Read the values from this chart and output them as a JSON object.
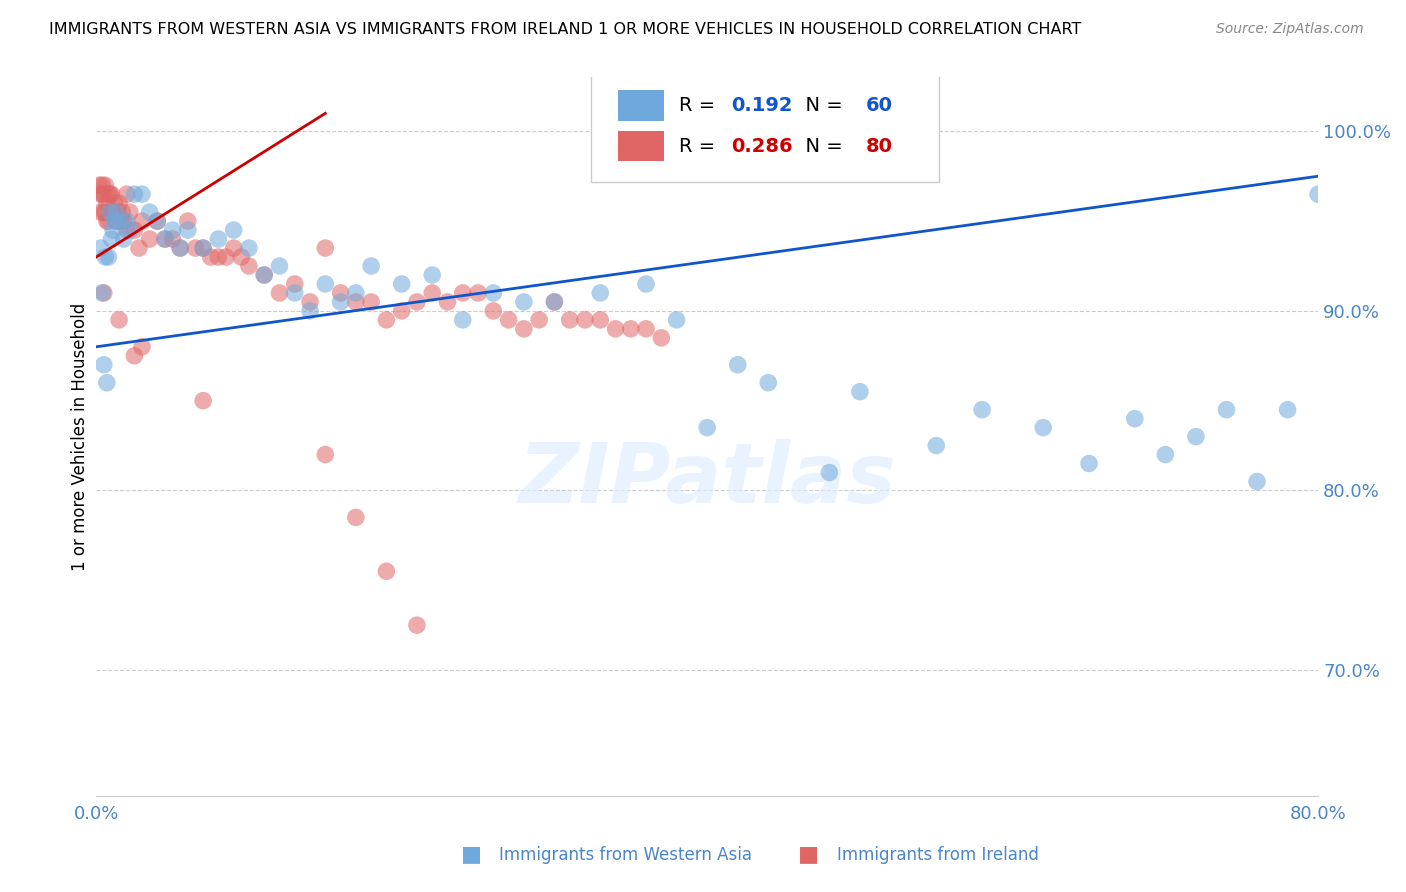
{
  "title": "IMMIGRANTS FROM WESTERN ASIA VS IMMIGRANTS FROM IRELAND 1 OR MORE VEHICLES IN HOUSEHOLD CORRELATION CHART",
  "source": "Source: ZipAtlas.com",
  "ylabel": "1 or more Vehicles in Household",
  "blue_R": 0.192,
  "blue_N": 60,
  "pink_R": 0.286,
  "pink_N": 80,
  "blue_color": "#6fa8dc",
  "pink_color": "#e06666",
  "blue_line_color": "#1155cc",
  "pink_line_color": "#cc0000",
  "axis_color": "#4a86c8",
  "watermark": "ZIPatlas",
  "xlim": [
    0,
    80
  ],
  "ylim": [
    63,
    103
  ],
  "ytick_vals": [
    70.0,
    80.0,
    90.0,
    100.0
  ],
  "blue_scatter_x": [
    0.3,
    0.4,
    0.5,
    0.6,
    0.7,
    0.8,
    0.9,
    1.0,
    1.1,
    1.2,
    1.3,
    1.5,
    1.8,
    2.0,
    2.2,
    2.5,
    3.0,
    3.5,
    4.0,
    4.5,
    5.0,
    5.5,
    6.0,
    7.0,
    8.0,
    9.0,
    10.0,
    11.0,
    12.0,
    13.0,
    14.0,
    15.0,
    16.0,
    17.0,
    18.0,
    20.0,
    22.0,
    24.0,
    26.0,
    28.0,
    30.0,
    33.0,
    36.0,
    38.0,
    40.0,
    42.0,
    44.0,
    48.0,
    50.0,
    55.0,
    58.0,
    62.0,
    65.0,
    68.0,
    70.0,
    72.0,
    74.0,
    76.0,
    78.0,
    80.0
  ],
  "blue_scatter_y": [
    93.5,
    91.0,
    87.0,
    93.0,
    86.0,
    93.0,
    95.5,
    94.0,
    94.5,
    95.0,
    95.5,
    95.0,
    94.0,
    95.0,
    94.5,
    96.5,
    96.5,
    95.5,
    95.0,
    94.0,
    94.5,
    93.5,
    94.5,
    93.5,
    94.0,
    94.5,
    93.5,
    92.0,
    92.5,
    91.0,
    90.0,
    91.5,
    90.5,
    91.0,
    92.5,
    91.5,
    92.0,
    89.5,
    91.0,
    90.5,
    90.5,
    91.0,
    91.5,
    89.5,
    83.5,
    87.0,
    86.0,
    81.0,
    85.5,
    82.5,
    84.5,
    83.5,
    81.5,
    84.0,
    82.0,
    83.0,
    84.5,
    80.5,
    84.5,
    96.5
  ],
  "pink_scatter_x": [
    0.2,
    0.3,
    0.3,
    0.4,
    0.4,
    0.5,
    0.5,
    0.6,
    0.6,
    0.7,
    0.7,
    0.8,
    0.8,
    0.9,
    1.0,
    1.0,
    1.1,
    1.2,
    1.3,
    1.4,
    1.5,
    1.6,
    1.7,
    1.8,
    2.0,
    2.0,
    2.2,
    2.5,
    2.8,
    3.0,
    3.5,
    4.0,
    4.5,
    5.0,
    5.5,
    6.0,
    6.5,
    7.0,
    7.5,
    8.0,
    8.5,
    9.0,
    9.5,
    10.0,
    11.0,
    12.0,
    13.0,
    14.0,
    15.0,
    16.0,
    17.0,
    18.0,
    19.0,
    20.0,
    21.0,
    22.0,
    23.0,
    24.0,
    25.0,
    26.0,
    27.0,
    28.0,
    29.0,
    30.0,
    31.0,
    32.0,
    33.0,
    34.0,
    35.0,
    36.0,
    37.0,
    15.0,
    17.0,
    19.0,
    21.0,
    3.0,
    7.0,
    0.5,
    1.5,
    2.5
  ],
  "pink_scatter_y": [
    97.0,
    96.5,
    95.5,
    96.5,
    97.0,
    96.5,
    95.5,
    95.5,
    97.0,
    96.0,
    95.0,
    96.5,
    95.0,
    96.5,
    96.5,
    95.5,
    95.5,
    96.0,
    95.0,
    95.5,
    96.0,
    95.0,
    95.5,
    95.0,
    96.5,
    94.5,
    95.5,
    94.5,
    93.5,
    95.0,
    94.0,
    95.0,
    94.0,
    94.0,
    93.5,
    95.0,
    93.5,
    93.5,
    93.0,
    93.0,
    93.0,
    93.5,
    93.0,
    92.5,
    92.0,
    91.0,
    91.5,
    90.5,
    93.5,
    91.0,
    90.5,
    90.5,
    89.5,
    90.0,
    90.5,
    91.0,
    90.5,
    91.0,
    91.0,
    90.0,
    89.5,
    89.0,
    89.5,
    90.5,
    89.5,
    89.5,
    89.5,
    89.0,
    89.0,
    89.0,
    88.5,
    82.0,
    78.5,
    75.5,
    72.5,
    88.0,
    85.0,
    91.0,
    89.5,
    87.5
  ]
}
